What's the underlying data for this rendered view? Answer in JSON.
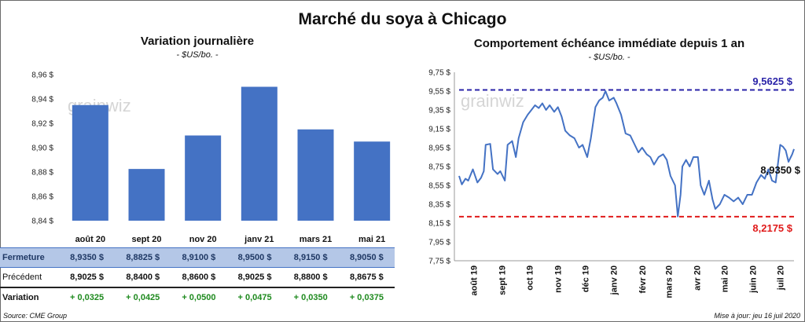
{
  "title": "Marché du soya à Chicago",
  "left": {
    "title": "Variation  journalière",
    "subtitle": "- $US/bo. -",
    "watermark": "grainwiz",
    "rows": {
      "close_label": "Fermeture",
      "prev_label": "Précédent",
      "var_label": "Variation"
    },
    "table": [
      {
        "close": "8,9350  $",
        "prev": "8,9025  $",
        "var": "+ 0,0325"
      },
      {
        "close": "8,8825  $",
        "prev": "8,8400  $",
        "var": "+ 0,0425"
      },
      {
        "close": "8,9100  $",
        "prev": "8,8600  $",
        "var": "+ 0,0500"
      },
      {
        "close": "8,9500  $",
        "prev": "8,9025  $",
        "var": "+ 0,0475"
      },
      {
        "close": "8,9150  $",
        "prev": "8,8800  $",
        "var": "+ 0,0350"
      },
      {
        "close": "8,9050  $",
        "prev": "8,8675  $",
        "var": "+ 0,0375"
      }
    ]
  },
  "right": {
    "title": "Comportement  échéance immédiate depuis 1 an",
    "subtitle": "- $US/bo. -",
    "watermark": "grainwiz",
    "high_label": "9,5625  $",
    "low_label": "8,2175  $",
    "last_label": "8,9350 $"
  },
  "footer": {
    "source": "Source: CME Group",
    "updated": "Mise à jour: jeu 16 juil 2020"
  },
  "colors": {
    "bar": "#4472c4",
    "line": "#4472c4",
    "high": "#2a23a8",
    "low": "#e01b1b",
    "variation": "#1e8a1e",
    "close_row": "#b4c7e7"
  },
  "chart_data": [
    {
      "type": "bar",
      "title": "Variation  journalière",
      "subtitle": "- $US/bo. -",
      "categories": [
        "août 20",
        "sept 20",
        "nov 20",
        "janv 21",
        "mars 21",
        "mai 21"
      ],
      "values": [
        8.935,
        8.8825,
        8.91,
        8.95,
        8.915,
        8.905
      ],
      "ylim": [
        8.84,
        8.96
      ],
      "yticks": [
        "8,84 $",
        "8,86 $",
        "8,88 $",
        "8,90 $",
        "8,92 $",
        "8,94 $",
        "8,96 $"
      ],
      "grid": false
    },
    {
      "type": "line",
      "title": "Comportement  échéance immédiate depuis 1 an",
      "subtitle": "- $US/bo. -",
      "ylim": [
        7.75,
        9.75
      ],
      "yticks": [
        "7,75 $",
        "7,95 $",
        "8,15 $",
        "8,35 $",
        "8,55 $",
        "8,75 $",
        "8,95 $",
        "9,15 $",
        "9,35 $",
        "9,55 $",
        "9,75 $"
      ],
      "xticks": [
        "août 19",
        "sept 19",
        "oct 19",
        "nov 19",
        "déc 19",
        "janv 20",
        "févr 20",
        "mars 20",
        "avr 20",
        "mai 20",
        "juin 20",
        "juil 20"
      ],
      "x_range": [
        "2019-07-16",
        "2020-07-16"
      ],
      "reference_lines": [
        {
          "value": 9.5625,
          "label": "9,5625  $",
          "color": "#2a23a8"
        },
        {
          "value": 8.2175,
          "label": "8,2175  $",
          "color": "#e01b1b"
        }
      ],
      "series": [
        {
          "points": [
            [
              "2019-07-16",
              8.65
            ],
            [
              "2019-07-19",
              8.56
            ],
            [
              "2019-07-23",
              8.62
            ],
            [
              "2019-07-26",
              8.6
            ],
            [
              "2019-07-31",
              8.72
            ],
            [
              "2019-08-05",
              8.58
            ],
            [
              "2019-08-09",
              8.63
            ],
            [
              "2019-08-12",
              8.7
            ],
            [
              "2019-08-14",
              8.98
            ],
            [
              "2019-08-19",
              8.99
            ],
            [
              "2019-08-22",
              8.72
            ],
            [
              "2019-08-27",
              8.67
            ],
            [
              "2019-08-30",
              8.7
            ],
            [
              "2019-09-04",
              8.6
            ],
            [
              "2019-09-07",
              8.98
            ],
            [
              "2019-09-12",
              9.02
            ],
            [
              "2019-09-16",
              8.85
            ],
            [
              "2019-09-19",
              9.05
            ],
            [
              "2019-09-24",
              9.22
            ],
            [
              "2019-09-29",
              9.3
            ],
            [
              "2019-10-03",
              9.35
            ],
            [
              "2019-10-07",
              9.4
            ],
            [
              "2019-10-11",
              9.37
            ],
            [
              "2019-10-15",
              9.42
            ],
            [
              "2019-10-19",
              9.35
            ],
            [
              "2019-10-23",
              9.4
            ],
            [
              "2019-10-28",
              9.33
            ],
            [
              "2019-11-01",
              9.38
            ],
            [
              "2019-11-05",
              9.28
            ],
            [
              "2019-11-09",
              9.13
            ],
            [
              "2019-11-14",
              9.08
            ],
            [
              "2019-11-19",
              9.05
            ],
            [
              "2019-11-24",
              8.95
            ],
            [
              "2019-11-28",
              8.98
            ],
            [
              "2019-12-03",
              8.85
            ],
            [
              "2019-12-07",
              9.05
            ],
            [
              "2019-12-12",
              9.38
            ],
            [
              "2019-12-16",
              9.45
            ],
            [
              "2019-12-20",
              9.48
            ],
            [
              "2019-12-23",
              9.55
            ],
            [
              "2019-12-27",
              9.45
            ],
            [
              "2020-01-01",
              9.48
            ],
            [
              "2020-01-04",
              9.42
            ],
            [
              "2020-01-09",
              9.3
            ],
            [
              "2020-01-14",
              9.1
            ],
            [
              "2020-01-19",
              9.08
            ],
            [
              "2020-01-23",
              9.0
            ],
            [
              "2020-01-28",
              8.9
            ],
            [
              "2020-02-01",
              8.95
            ],
            [
              "2020-02-06",
              8.88
            ],
            [
              "2020-02-10",
              8.85
            ],
            [
              "2020-02-14",
              8.77
            ],
            [
              "2020-02-19",
              8.85
            ],
            [
              "2020-02-24",
              8.88
            ],
            [
              "2020-02-28",
              8.82
            ],
            [
              "2020-03-03",
              8.65
            ],
            [
              "2020-03-08",
              8.55
            ],
            [
              "2020-03-11",
              8.22
            ],
            [
              "2020-03-14",
              8.45
            ],
            [
              "2020-03-16",
              8.75
            ],
            [
              "2020-03-20",
              8.82
            ],
            [
              "2020-03-24",
              8.75
            ],
            [
              "2020-03-28",
              8.85
            ],
            [
              "2020-04-02",
              8.85
            ],
            [
              "2020-04-05",
              8.55
            ],
            [
              "2020-04-09",
              8.45
            ],
            [
              "2020-04-14",
              8.6
            ],
            [
              "2020-04-18",
              8.4
            ],
            [
              "2020-04-21",
              8.3
            ],
            [
              "2020-04-26",
              8.35
            ],
            [
              "2020-05-01",
              8.45
            ],
            [
              "2020-05-06",
              8.42
            ],
            [
              "2020-05-11",
              8.38
            ],
            [
              "2020-05-16",
              8.42
            ],
            [
              "2020-05-21",
              8.35
            ],
            [
              "2020-05-26",
              8.45
            ],
            [
              "2020-05-31",
              8.45
            ],
            [
              "2020-06-05",
              8.58
            ],
            [
              "2020-06-10",
              8.66
            ],
            [
              "2020-06-14",
              8.62
            ],
            [
              "2020-06-18",
              8.72
            ],
            [
              "2020-06-22",
              8.6
            ],
            [
              "2020-06-26",
              8.58
            ],
            [
              "2020-07-01",
              8.98
            ],
            [
              "2020-07-04",
              8.96
            ],
            [
              "2020-07-07",
              8.92
            ],
            [
              "2020-07-10",
              8.8
            ],
            [
              "2020-07-14",
              8.88
            ],
            [
              "2020-07-16",
              8.935
            ]
          ]
        }
      ],
      "last_value_label": "8,9350 $",
      "grid": false
    }
  ]
}
